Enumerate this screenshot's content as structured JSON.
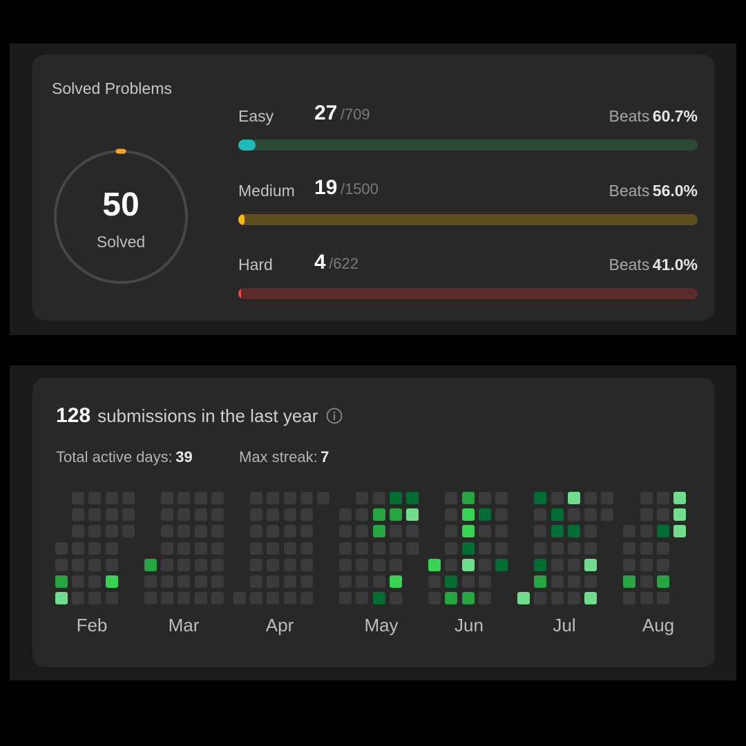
{
  "solved": {
    "title": "Solved Problems",
    "total": "50",
    "total_label": "Solved",
    "ring_color": "#f5a623",
    "difficulties": [
      {
        "label": "Easy",
        "count": "27",
        "total": "/709",
        "beats_label": "Beats",
        "beats": "60.7%",
        "fraction": 0.038,
        "fill_color": "#1cbbba",
        "track_color": "#2a4a33"
      },
      {
        "label": "Medium",
        "count": "19",
        "total": "/1500",
        "beats_label": "Beats",
        "beats": "56.0%",
        "fraction": 0.013,
        "fill_color": "#ffb800",
        "track_color": "#5e4e1f"
      },
      {
        "label": "Hard",
        "count": "4",
        "total": "/622",
        "beats_label": "Beats",
        "beats": "41.0%",
        "fraction": 0.006,
        "fill_color": "#ef4743",
        "track_color": "#5c2a28"
      }
    ]
  },
  "submissions": {
    "count": "128",
    "text": "submissions in the last year",
    "info_icon": "info-icon",
    "active_days_label": "Total active days:",
    "active_days": "39",
    "max_streak_label": "Max streak:",
    "max_streak": "7",
    "months": [
      "Feb",
      "Mar",
      "Apr",
      "May",
      "Jun",
      "Jul",
      "Aug"
    ],
    "level_colors": [
      "#3b3b3b",
      "#006d32",
      "#26a641",
      "#39d353",
      "#6fdd8b"
    ],
    "weeks": [
      [
        null,
        null,
        null,
        0,
        0,
        2,
        4
      ],
      [
        0,
        0,
        0,
        0,
        0,
        0,
        0
      ],
      [
        0,
        0,
        0,
        0,
        0,
        0,
        0
      ],
      [
        0,
        0,
        0,
        0,
        0,
        3,
        0
      ],
      [
        0,
        0,
        0,
        null,
        null,
        null,
        null
      ],
      [
        null,
        null,
        null,
        null,
        2,
        0,
        0
      ],
      [
        0,
        0,
        0,
        0,
        0,
        0,
        0
      ],
      [
        0,
        0,
        0,
        0,
        0,
        0,
        0
      ],
      [
        0,
        0,
        0,
        0,
        0,
        0,
        0
      ],
      [
        0,
        0,
        0,
        0,
        0,
        0,
        0
      ],
      [
        null,
        null,
        null,
        null,
        null,
        null,
        0
      ],
      [
        0,
        0,
        0,
        0,
        0,
        0,
        0
      ],
      [
        0,
        0,
        0,
        0,
        0,
        0,
        0
      ],
      [
        0,
        0,
        0,
        0,
        0,
        0,
        0
      ],
      [
        0,
        0,
        0,
        0,
        0,
        0,
        0
      ],
      [
        0,
        null,
        null,
        null,
        null,
        null,
        null
      ],
      [
        null,
        0,
        0,
        0,
        0,
        0,
        0
      ],
      [
        0,
        0,
        0,
        0,
        0,
        0,
        0
      ],
      [
        0,
        2,
        2,
        0,
        0,
        0,
        1
      ],
      [
        1,
        2,
        0,
        0,
        0,
        3,
        0
      ],
      [
        1,
        4,
        0,
        0,
        null,
        null,
        null
      ],
      [
        null,
        null,
        null,
        null,
        3,
        0,
        0
      ],
      [
        0,
        0,
        0,
        0,
        0,
        1,
        2
      ],
      [
        2,
        3,
        3,
        1,
        4,
        0,
        2
      ],
      [
        0,
        1,
        0,
        0,
        0,
        0,
        0
      ],
      [
        0,
        0,
        0,
        0,
        1,
        null,
        null
      ],
      [
        null,
        null,
        null,
        null,
        null,
        null,
        4
      ],
      [
        1,
        0,
        0,
        0,
        1,
        2,
        0
      ],
      [
        0,
        1,
        1,
        0,
        0,
        0,
        0
      ],
      [
        4,
        0,
        1,
        0,
        0,
        0,
        0
      ],
      [
        0,
        0,
        0,
        0,
        4,
        0,
        4
      ],
      [
        0,
        0,
        null,
        null,
        null,
        null,
        null
      ],
      [
        null,
        null,
        0,
        0,
        0,
        2,
        0
      ],
      [
        0,
        0,
        0,
        0,
        0,
        0,
        0
      ],
      [
        0,
        0,
        1,
        0,
        0,
        2,
        0
      ],
      [
        4,
        4,
        4,
        null,
        null,
        null,
        null
      ]
    ]
  }
}
